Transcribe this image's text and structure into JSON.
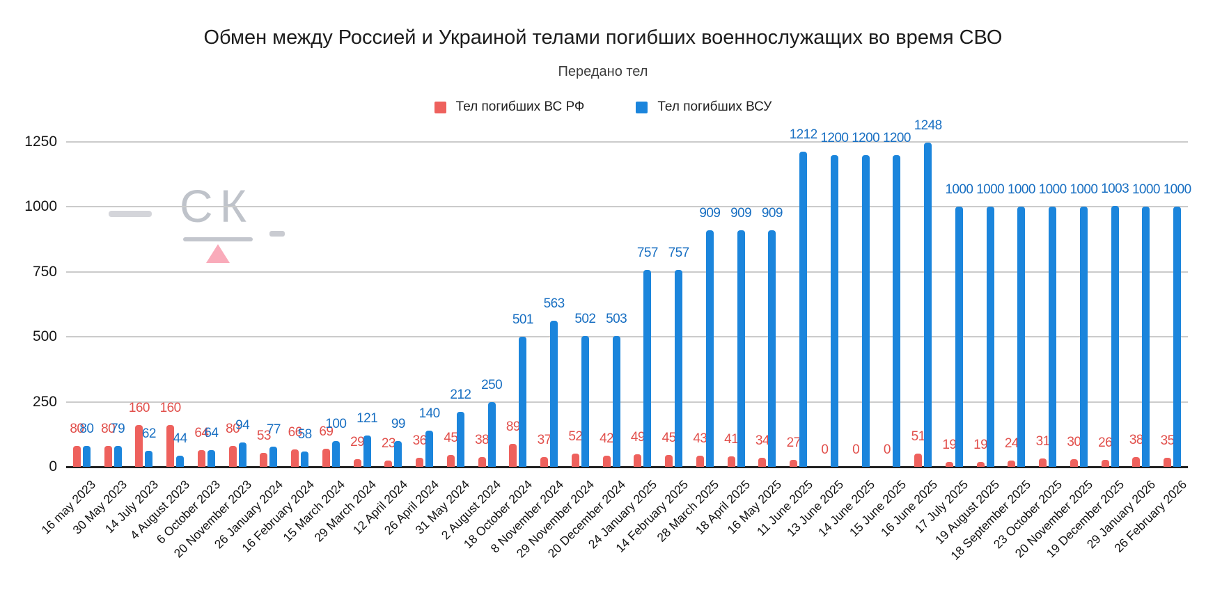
{
  "title": "Обмен между Россией и Украиной телами погибших военнослужащих во время СВО",
  "subtitle": "Передано тел",
  "legend": [
    {
      "label": "Тел погибших ВС  РФ",
      "color": "#ee615d"
    },
    {
      "label": "Тел погибших ВСУ",
      "color": "#1b85dc"
    }
  ],
  "watermark": {
    "text": "СК",
    "triangle_color": "#f8a2b2"
  },
  "chart_data": {
    "type": "bar",
    "title": "Обмен между Россией и Украиной телами погибших военнослужащих во время СВО",
    "subtitle": "Передано тел",
    "xlabel": "",
    "ylabel": "",
    "ylim": [
      0,
      1250
    ],
    "yticks": [
      0,
      250,
      500,
      750,
      1000,
      1250
    ],
    "grid": true,
    "legend_position": "top",
    "categories": [
      "16 may 2023",
      "30 May 2023",
      "14 July 2023",
      "4 August 2023",
      "6 October 2023",
      "20 November 2023",
      "26 January 2024",
      "16 February 2024",
      "15 March 2024",
      "29 March 2024",
      "12 April 2024",
      "26 April 2024",
      "31 May 2024",
      "2 August 2024",
      "18 October 2024",
      "8 November 2024",
      "29 November 2024",
      "20 December 2024",
      "24 January 2025",
      "14 February 2025",
      "28 March 2025",
      "18 April 2025",
      "16 May 2025",
      "11 June 2025",
      "13 June 2025",
      "14 June 2025",
      "15 June 2025",
      "16 June 2025",
      "17 July 2025",
      "19 August 2025",
      "18 September 2025",
      "23 October 2025",
      "20 November 2025",
      "19 December 2025",
      "29 January 2026",
      "26 February 2026"
    ],
    "series": [
      {
        "name": "Тел погибших ВС  РФ",
        "color": "#ee615d",
        "label_color": "#e14f4b",
        "values": [
          80,
          80,
          160,
          160,
          64,
          80,
          53,
          66,
          69,
          29,
          23,
          36,
          45,
          38,
          89,
          37,
          52,
          42,
          49,
          45,
          43,
          41,
          34,
          27,
          0,
          0,
          0,
          51,
          19,
          19,
          24,
          31,
          30,
          26,
          38,
          35
        ]
      },
      {
        "name": "Тел погибших ВСУ",
        "color": "#1b85dc",
        "label_color": "#186fc2",
        "values": [
          80,
          79,
          62,
          44,
          64,
          94,
          77,
          58,
          100,
          121,
          99,
          140,
          212,
          250,
          501,
          563,
          502,
          503,
          757,
          757,
          909,
          909,
          909,
          1212,
          1200,
          1200,
          1200,
          1248,
          1000,
          1000,
          1000,
          1000,
          1000,
          1003,
          1000,
          1000
        ]
      }
    ]
  }
}
